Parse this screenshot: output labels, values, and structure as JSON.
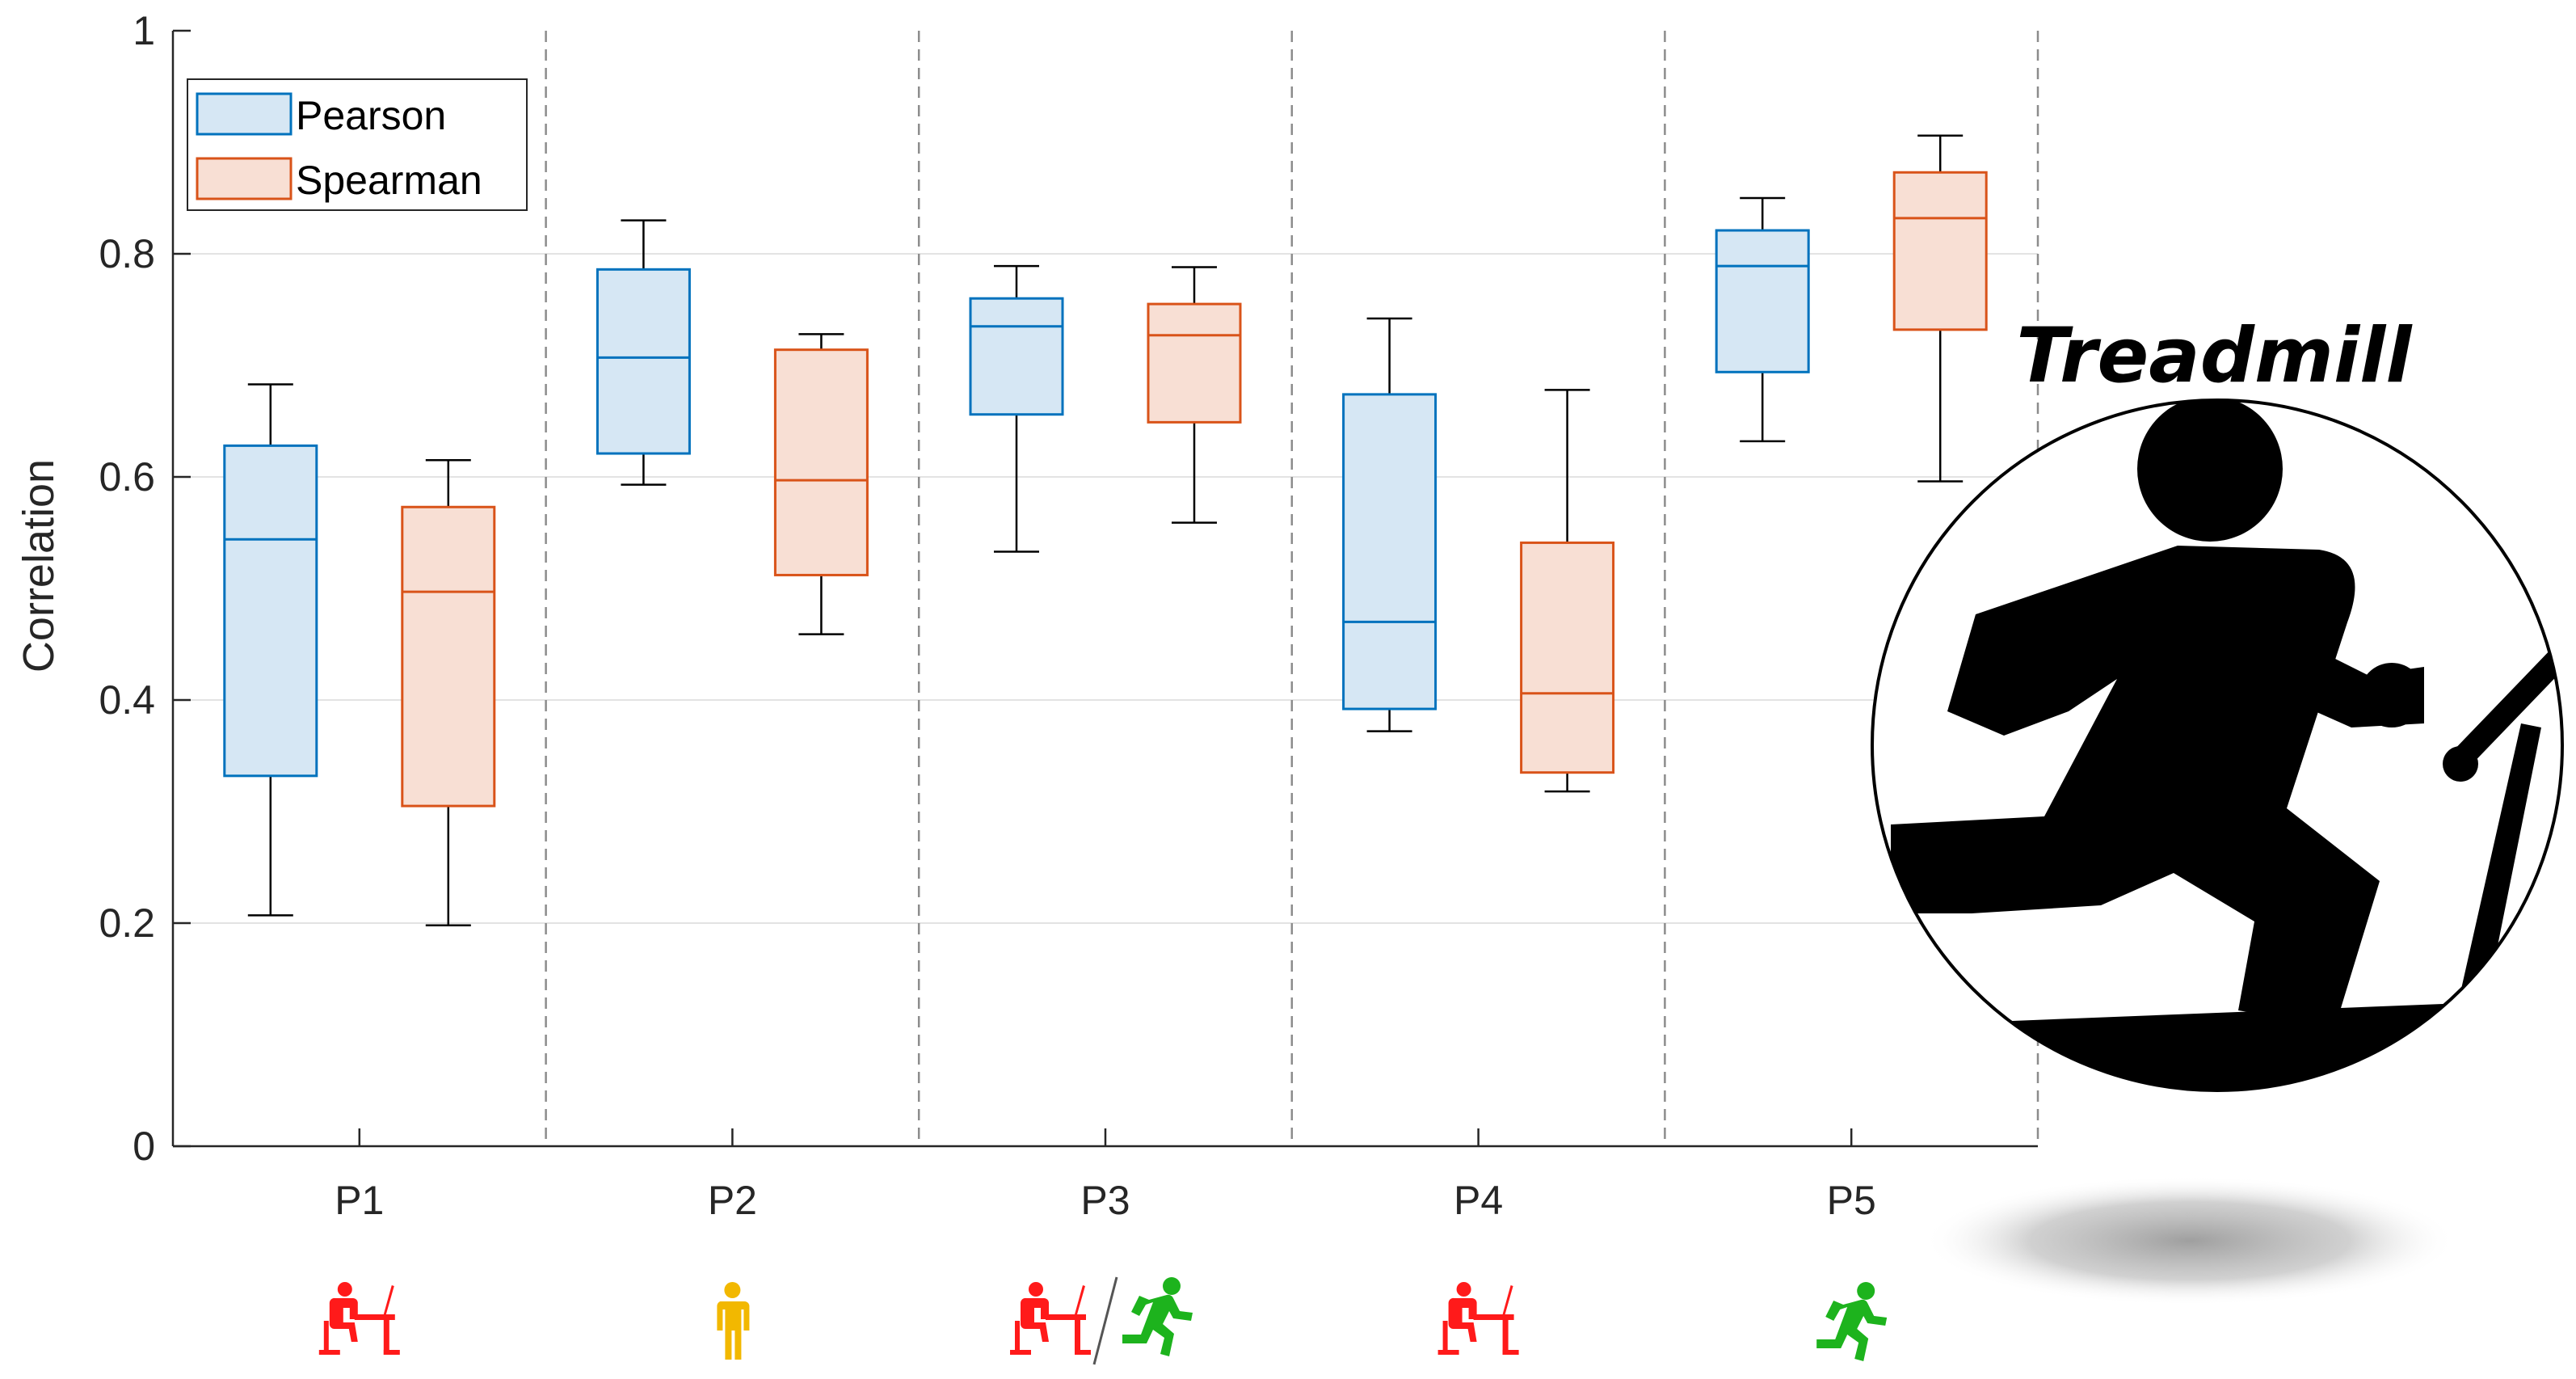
{
  "chart_data": {
    "type": "boxplot",
    "xlabel": "",
    "ylabel": "Correlation",
    "ylim": [
      0,
      1
    ],
    "yticks": [
      0,
      0.2,
      0.4,
      0.6,
      0.8,
      1
    ],
    "ytick_labels": [
      "0",
      "0.2",
      "0.4",
      "0.6",
      "0.8",
      "1"
    ],
    "categories": [
      "P1",
      "P2",
      "P3",
      "P4",
      "P5"
    ],
    "grid": "horizontal",
    "legend_position": "top-left",
    "series": [
      {
        "name": "Pearson",
        "color": "#0072BD",
        "fill": "#d6e7f4",
        "boxes": [
          {
            "min": 0.207,
            "q1": 0.332,
            "median": 0.544,
            "q3": 0.628,
            "max": 0.683
          },
          {
            "min": 0.593,
            "q1": 0.621,
            "median": 0.707,
            "q3": 0.786,
            "max": 0.83
          },
          {
            "min": 0.533,
            "q1": 0.656,
            "median": 0.735,
            "q3": 0.76,
            "max": 0.789
          },
          {
            "min": 0.372,
            "q1": 0.392,
            "median": 0.47,
            "q3": 0.674,
            "max": 0.742
          },
          {
            "min": 0.632,
            "q1": 0.694,
            "median": 0.789,
            "q3": 0.821,
            "max": 0.85
          }
        ]
      },
      {
        "name": "Spearman",
        "color": "#D95319",
        "fill": "#f8dfd4",
        "boxes": [
          {
            "min": 0.198,
            "q1": 0.305,
            "median": 0.497,
            "q3": 0.573,
            "max": 0.615
          },
          {
            "min": 0.459,
            "q1": 0.512,
            "median": 0.597,
            "q3": 0.714,
            "max": 0.728
          },
          {
            "min": 0.559,
            "q1": 0.649,
            "median": 0.727,
            "q3": 0.755,
            "max": 0.788
          },
          {
            "min": 0.318,
            "q1": 0.335,
            "median": 0.406,
            "q3": 0.541,
            "max": 0.678
          },
          {
            "min": 0.596,
            "q1": 0.732,
            "median": 0.832,
            "q3": 0.873,
            "max": 0.906
          }
        ]
      }
    ],
    "activity_icons": [
      [
        "desk-worker-icon"
      ],
      [
        "standing-person-icon"
      ],
      [
        "desk-worker-icon",
        "runner-icon"
      ],
      [
        "desk-worker-icon"
      ],
      [
        "runner-icon"
      ]
    ],
    "icon_colors": {
      "desk": "#ff1a1a",
      "standing": "#f2b800",
      "runner": "#1db31d"
    }
  },
  "inset": {
    "title": "Treadmill",
    "icon": "treadmill-runner-icon"
  }
}
